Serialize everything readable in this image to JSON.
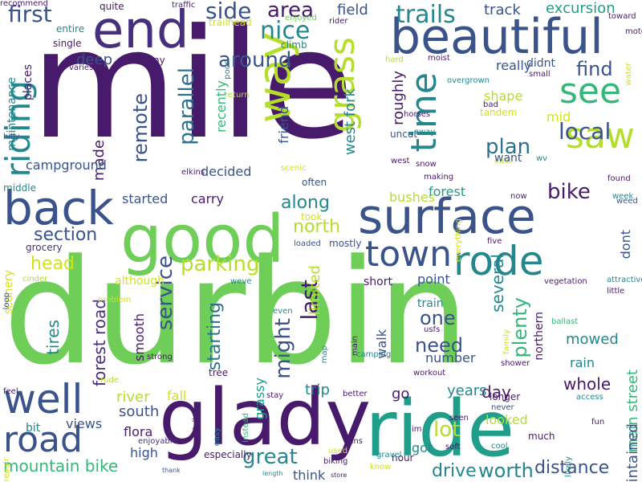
{
  "palette": {
    "d": "#481a6c",
    "i": "#472f7d",
    "b": "#3a538b",
    "t": "#2c718e",
    "c": "#24878e",
    "g": "#1f9e89",
    "m": "#35b779",
    "l": "#6ece58",
    "y": "#b5de2b",
    "Y": "#d2e21b"
  },
  "words": [
    {
      "text": "mile",
      "color": "d",
      "role": "word"
    },
    {
      "text": "durbin",
      "color": "l",
      "role": "word"
    },
    {
      "text": "glady",
      "color": "d",
      "role": "word"
    },
    {
      "text": "ride",
      "color": "g",
      "role": "word"
    },
    {
      "text": "good",
      "color": "l",
      "role": "word"
    },
    {
      "text": "surface",
      "color": "b",
      "role": "word"
    },
    {
      "text": "back",
      "color": "b",
      "role": "word"
    },
    {
      "text": "end",
      "color": "i",
      "role": "word"
    },
    {
      "text": "beautiful",
      "color": "b",
      "role": "word"
    },
    {
      "text": "rode",
      "color": "c",
      "role": "word"
    },
    {
      "text": "road",
      "color": "b",
      "role": "word"
    },
    {
      "text": "well",
      "color": "b",
      "role": "word"
    },
    {
      "text": "town",
      "color": "b",
      "role": "word"
    },
    {
      "text": "way",
      "color": "y",
      "role": "word"
    },
    {
      "text": "grass",
      "color": "y",
      "role": "word"
    },
    {
      "text": "saw",
      "color": "y",
      "role": "word"
    },
    {
      "text": "see",
      "color": "m",
      "role": "word"
    },
    {
      "text": "time",
      "color": "c",
      "role": "word"
    },
    {
      "text": "riding",
      "color": "c",
      "role": "word"
    },
    {
      "text": "nice",
      "color": "c",
      "role": "word"
    },
    {
      "text": "parking",
      "color": "y",
      "role": "word"
    },
    {
      "text": "trails",
      "color": "c",
      "role": "word"
    },
    {
      "text": "area",
      "color": "d",
      "role": "word"
    },
    {
      "text": "first",
      "color": "b",
      "role": "word"
    },
    {
      "text": "side",
      "color": "b",
      "role": "word"
    },
    {
      "text": "around",
      "color": "b",
      "role": "word"
    },
    {
      "text": "find",
      "color": "b",
      "role": "word"
    },
    {
      "text": "local",
      "color": "b",
      "role": "word"
    },
    {
      "text": "bike",
      "color": "d",
      "role": "word"
    },
    {
      "text": "plan",
      "color": "t",
      "role": "word"
    },
    {
      "text": "north",
      "color": "y",
      "role": "word"
    },
    {
      "text": "along",
      "color": "c",
      "role": "word"
    },
    {
      "text": "section",
      "color": "b",
      "role": "word"
    },
    {
      "text": "head",
      "color": "Y",
      "role": "word"
    },
    {
      "text": "great",
      "color": "c",
      "role": "word"
    },
    {
      "text": "mountain bike",
      "color": "m",
      "role": "word"
    },
    {
      "text": "lot",
      "color": "y",
      "role": "word"
    },
    {
      "text": "need",
      "color": "b",
      "role": "word"
    },
    {
      "text": "one",
      "color": "b",
      "role": "word"
    },
    {
      "text": "last",
      "color": "d",
      "role": "word"
    },
    {
      "text": "might",
      "color": "b",
      "role": "word"
    },
    {
      "text": "remote",
      "color": "b",
      "role": "word"
    },
    {
      "text": "parallel",
      "color": "t",
      "role": "word"
    },
    {
      "text": "service",
      "color": "b",
      "role": "word"
    },
    {
      "text": "forest road",
      "color": "i",
      "role": "word"
    },
    {
      "text": "tires",
      "color": "c",
      "role": "word"
    },
    {
      "text": "starting",
      "color": "t",
      "role": "word"
    },
    {
      "text": "plenty",
      "color": "m",
      "role": "word"
    },
    {
      "text": "several",
      "color": "c",
      "role": "word"
    },
    {
      "text": "worth",
      "color": "c",
      "role": "word"
    },
    {
      "text": "distance",
      "color": "b",
      "role": "word"
    },
    {
      "text": "drive",
      "color": "c",
      "role": "word"
    },
    {
      "text": "excursion",
      "color": "g",
      "role": "word"
    },
    {
      "text": "track",
      "color": "b",
      "role": "word"
    },
    {
      "text": "field",
      "color": "b",
      "role": "word"
    },
    {
      "text": "west fork",
      "color": "c",
      "role": "word"
    },
    {
      "text": "roughly",
      "color": "d",
      "role": "word"
    },
    {
      "text": "friend",
      "color": "b",
      "role": "word"
    },
    {
      "text": "recently",
      "color": "m",
      "role": "word"
    },
    {
      "text": "decided",
      "color": "b",
      "role": "word"
    },
    {
      "text": "deep",
      "color": "b",
      "role": "word"
    },
    {
      "text": "really",
      "color": "b",
      "role": "word"
    },
    {
      "text": "didnt",
      "color": "b",
      "role": "word"
    },
    {
      "text": "mid",
      "color": "Y",
      "role": "word"
    },
    {
      "text": "shape",
      "color": "y",
      "role": "word"
    },
    {
      "text": "carry",
      "color": "d",
      "role": "word"
    },
    {
      "text": "started",
      "color": "b",
      "role": "word"
    },
    {
      "text": "bushes",
      "color": "y",
      "role": "word"
    },
    {
      "text": "forest",
      "color": "g",
      "role": "word"
    },
    {
      "text": "made",
      "color": "d",
      "role": "word"
    },
    {
      "text": "campground",
      "color": "b",
      "role": "word"
    },
    {
      "text": "dont",
      "color": "b",
      "role": "word"
    },
    {
      "text": "point",
      "color": "b",
      "role": "word"
    },
    {
      "text": "limited",
      "color": "y",
      "role": "word"
    },
    {
      "text": "short",
      "color": "d",
      "role": "word"
    },
    {
      "text": "train",
      "color": "c",
      "role": "word"
    },
    {
      "text": "walk",
      "color": "b",
      "role": "word"
    },
    {
      "text": "number",
      "color": "b",
      "role": "word"
    },
    {
      "text": "mowed",
      "color": "c",
      "role": "word"
    },
    {
      "text": "rain",
      "color": "c",
      "role": "word"
    },
    {
      "text": "whole",
      "color": "d",
      "role": "word"
    },
    {
      "text": "trip",
      "color": "c",
      "role": "word"
    },
    {
      "text": "day",
      "color": "d",
      "role": "word"
    },
    {
      "text": "years",
      "color": "c",
      "role": "word"
    },
    {
      "text": "go",
      "color": "d",
      "role": "word"
    },
    {
      "text": "river",
      "color": "y",
      "role": "word"
    },
    {
      "text": "fall",
      "color": "Y",
      "role": "word"
    },
    {
      "text": "south",
      "color": "b",
      "role": "word"
    },
    {
      "text": "flora",
      "color": "d",
      "role": "word"
    },
    {
      "text": "high",
      "color": "b",
      "role": "word"
    },
    {
      "text": "bit",
      "color": "c",
      "role": "word"
    },
    {
      "text": "views",
      "color": "b",
      "role": "word"
    },
    {
      "text": "looked",
      "color": "y",
      "role": "word"
    },
    {
      "text": "got",
      "color": "c",
      "role": "word"
    },
    {
      "text": "think",
      "color": "b",
      "role": "word"
    },
    {
      "text": "northern",
      "color": "d",
      "role": "word"
    },
    {
      "text": "main street",
      "color": "m",
      "role": "word"
    },
    {
      "text": "maintained",
      "color": "b",
      "role": "word"
    },
    {
      "text": "smooth",
      "color": "d",
      "role": "word"
    },
    {
      "text": "grassy",
      "color": "g",
      "role": "word"
    },
    {
      "text": "although",
      "color": "Y",
      "role": "word"
    },
    {
      "text": "places",
      "color": "d",
      "role": "word"
    },
    {
      "text": "maintenance",
      "color": "c",
      "role": "word"
    },
    {
      "text": "middle",
      "color": "c",
      "role": "word"
    },
    {
      "text": "scenery",
      "color": "Y",
      "role": "word"
    },
    {
      "text": "grocery",
      "color": "i",
      "role": "word"
    },
    {
      "text": "many",
      "color": "d",
      "role": "word"
    },
    {
      "text": "quite",
      "color": "d",
      "role": "word"
    },
    {
      "text": "traffic",
      "color": "d",
      "role": "word"
    },
    {
      "text": "enjoyed",
      "color": "l",
      "role": "word"
    },
    {
      "text": "toward",
      "color": "d",
      "role": "word"
    },
    {
      "text": "motel",
      "color": "d",
      "role": "word"
    },
    {
      "text": "rider",
      "color": "d",
      "role": "word"
    },
    {
      "text": "trailhead",
      "color": "Y",
      "role": "word"
    },
    {
      "text": "climb",
      "color": "c",
      "role": "word"
    },
    {
      "text": "entire",
      "color": "c",
      "role": "word"
    },
    {
      "text": "single",
      "color": "d",
      "role": "word"
    },
    {
      "text": "varies",
      "color": "d",
      "role": "word"
    },
    {
      "text": "hard",
      "color": "y",
      "role": "word"
    },
    {
      "text": "moist",
      "color": "d",
      "role": "word"
    },
    {
      "text": "small",
      "color": "d",
      "role": "word"
    },
    {
      "text": "water",
      "color": "Y",
      "role": "word"
    },
    {
      "text": "overgrown",
      "color": "c",
      "role": "word"
    },
    {
      "text": "bad",
      "color": "d",
      "role": "word"
    },
    {
      "text": "tandem",
      "color": "Y",
      "role": "word"
    },
    {
      "text": "horses",
      "color": "d",
      "role": "word"
    },
    {
      "text": "uncut",
      "color": "b",
      "role": "word"
    },
    {
      "text": "away",
      "color": "c",
      "role": "word"
    },
    {
      "text": "east",
      "color": "Y",
      "role": "word"
    },
    {
      "text": "want",
      "color": "b",
      "role": "word"
    },
    {
      "text": "wv",
      "color": "c",
      "role": "word"
    },
    {
      "text": "west",
      "color": "d",
      "role": "word"
    },
    {
      "text": "snow",
      "color": "d",
      "role": "word"
    },
    {
      "text": "making",
      "color": "d",
      "role": "word"
    },
    {
      "text": "found",
      "color": "d",
      "role": "word"
    },
    {
      "text": "week",
      "color": "c",
      "role": "word"
    },
    {
      "text": "weed",
      "color": "b",
      "role": "word"
    },
    {
      "text": "now",
      "color": "d",
      "role": "word"
    },
    {
      "text": "scenic",
      "color": "Y",
      "role": "word"
    },
    {
      "text": "often",
      "color": "b",
      "role": "word"
    },
    {
      "text": "took",
      "color": "Y",
      "role": "word"
    },
    {
      "text": "loaded",
      "color": "b",
      "role": "word"
    },
    {
      "text": "mostly",
      "color": "b",
      "role": "word"
    },
    {
      "text": "five",
      "color": "d",
      "role": "word"
    },
    {
      "text": "everything",
      "color": "Y",
      "role": "word"
    },
    {
      "text": "hilly",
      "color": "b",
      "role": "word"
    },
    {
      "text": "elkins",
      "color": "d",
      "role": "word"
    },
    {
      "text": "poor",
      "color": "c",
      "role": "word"
    },
    {
      "text": "return",
      "color": "y",
      "role": "word"
    },
    {
      "text": "cinder",
      "color": "y",
      "role": "word"
    },
    {
      "text": "problem",
      "color": "Y",
      "role": "word"
    },
    {
      "text": "loop",
      "color": "b",
      "role": "word"
    },
    {
      "text": "weve",
      "color": "c",
      "role": "word"
    },
    {
      "text": "even",
      "color": "c",
      "role": "word"
    },
    {
      "text": "vegetation",
      "color": "d",
      "role": "word"
    },
    {
      "text": "attractive",
      "color": "c",
      "role": "word"
    },
    {
      "text": "little",
      "color": "d",
      "role": "word"
    },
    {
      "text": "usfs",
      "color": "d",
      "role": "word"
    },
    {
      "text": "ballast",
      "color": "m",
      "role": "word"
    },
    {
      "text": "main",
      "color": "d",
      "role": "word"
    },
    {
      "text": "family",
      "color": "Y",
      "role": "word"
    },
    {
      "text": "camping",
      "color": "c",
      "role": "word"
    },
    {
      "text": "map",
      "color": "c",
      "role": "word"
    },
    {
      "text": "shower",
      "color": "d",
      "role": "word"
    },
    {
      "text": "strong",
      "color": "d",
      "role": "word"
    },
    {
      "text": "tree",
      "color": "d",
      "role": "word"
    },
    {
      "text": "rude",
      "color": "y",
      "role": "word"
    },
    {
      "text": "feel",
      "color": "d",
      "role": "word"
    },
    {
      "text": "workout",
      "color": "d",
      "role": "word"
    },
    {
      "text": "stay",
      "color": "d",
      "role": "word"
    },
    {
      "text": "better",
      "color": "d",
      "role": "word"
    },
    {
      "text": "longer",
      "color": "d",
      "role": "word"
    },
    {
      "text": "access",
      "color": "c",
      "role": "word"
    },
    {
      "text": "instead",
      "color": "m",
      "role": "word"
    },
    {
      "text": "wildell",
      "color": "d",
      "role": "word"
    },
    {
      "text": "easy",
      "color": "c",
      "role": "word"
    },
    {
      "text": "repair",
      "color": "Y",
      "role": "word"
    },
    {
      "text": "enjoyable",
      "color": "i",
      "role": "word"
    },
    {
      "text": "seen",
      "color": "d",
      "role": "word"
    },
    {
      "text": "never",
      "color": "b",
      "role": "word"
    },
    {
      "text": "fun",
      "color": "d",
      "role": "word"
    },
    {
      "text": "im",
      "color": "d",
      "role": "word"
    },
    {
      "text": "runs",
      "color": "d",
      "role": "word"
    },
    {
      "text": "soft",
      "color": "d",
      "role": "word"
    },
    {
      "text": "much",
      "color": "d",
      "role": "word"
    },
    {
      "text": "cool",
      "color": "c",
      "role": "word"
    },
    {
      "text": "used",
      "color": "Y",
      "role": "word"
    },
    {
      "text": "likely",
      "color": "c",
      "role": "word"
    },
    {
      "text": "especially",
      "color": "d",
      "role": "word"
    },
    {
      "text": "biking",
      "color": "d",
      "role": "word"
    },
    {
      "text": "hour",
      "color": "d",
      "role": "word"
    },
    {
      "text": "gravel",
      "color": "c",
      "role": "word"
    },
    {
      "text": "know",
      "color": "Y",
      "role": "word"
    },
    {
      "text": "thank",
      "color": "b",
      "role": "word"
    },
    {
      "text": "length",
      "color": "c",
      "role": "word"
    },
    {
      "text": "store",
      "color": "d",
      "role": "word"
    },
    {
      "text": "recommend",
      "color": "d",
      "role": "word"
    }
  ]
}
